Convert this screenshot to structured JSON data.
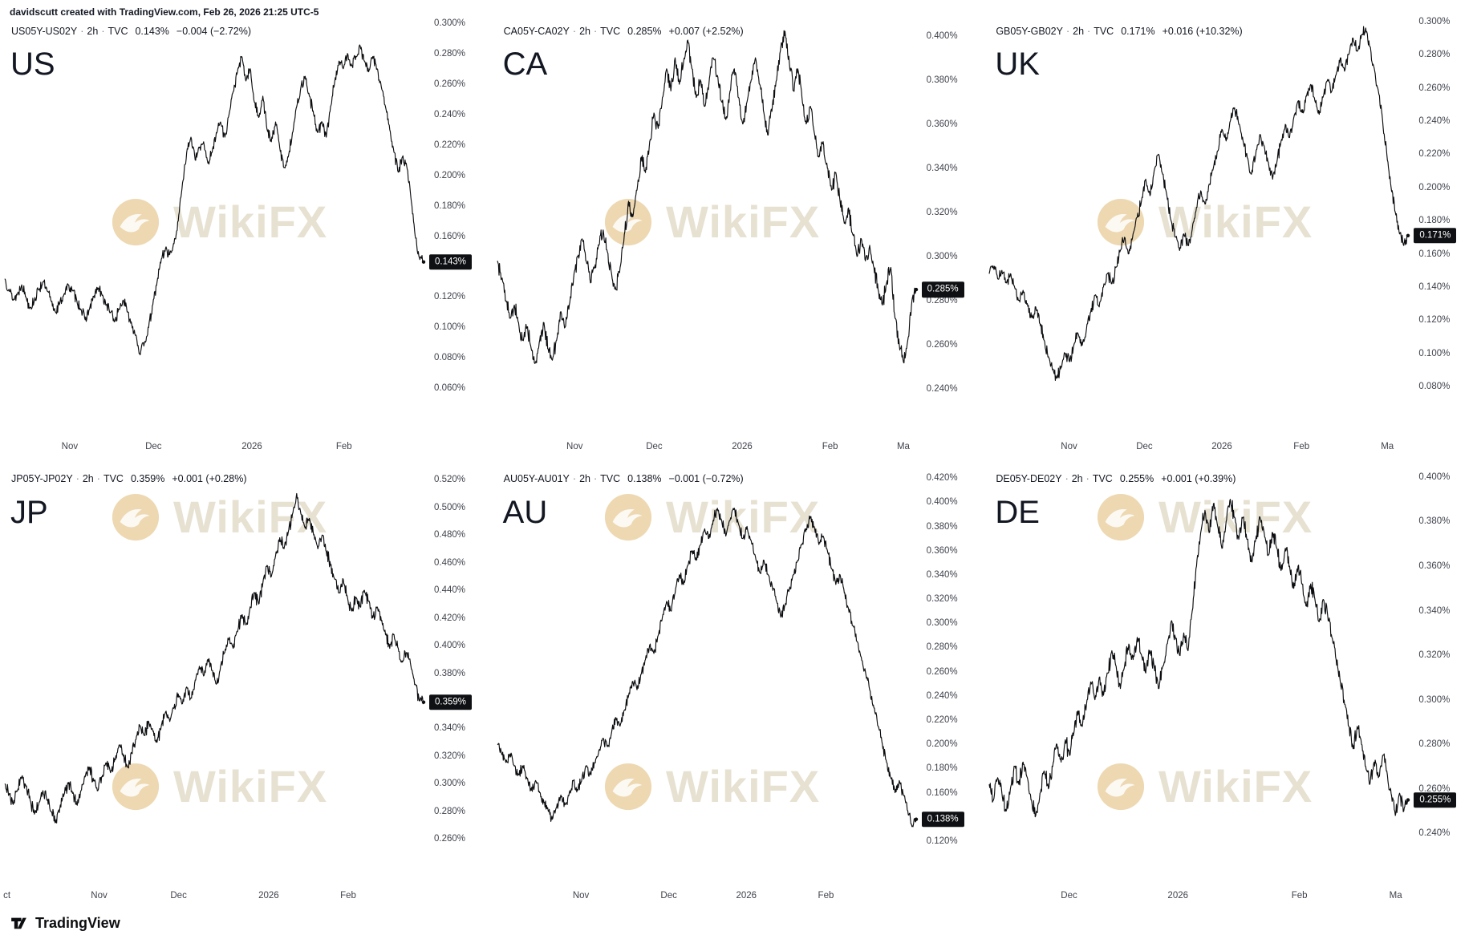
{
  "meta": {
    "sep": "·"
  },
  "credit": "davidscutt created with TradingView.com, Feb 26, 2026 21:25 UTC-5",
  "footer": {
    "brand": "TradingView"
  },
  "watermark": {
    "text": "WikiFX",
    "text_color": "#c9bd9a",
    "logo_color": "#d8ab55"
  },
  "chart_data": [
    {
      "type": "line",
      "title": "US",
      "symbol": "US05Y-US02Y",
      "interval": "2h",
      "source": "TVC",
      "price": "0.143%",
      "change": "−0.004",
      "change_pct": "(−2.72%)",
      "badge_value": 0.143,
      "ylim": [
        0.048,
        0.312
      ],
      "ytick_min": 0.06,
      "ytick_max": 0.3,
      "ytick_step": 0.02,
      "jitter": 0.004,
      "x_labels": [
        {
          "t": "Nov",
          "f": 0.155
        },
        {
          "t": "Dec",
          "f": 0.355
        },
        {
          "t": "2026",
          "f": 0.59
        },
        {
          "t": "Feb",
          "f": 0.81
        }
      ],
      "values": [
        0.132,
        0.125,
        0.118,
        0.122,
        0.128,
        0.12,
        0.113,
        0.118,
        0.125,
        0.13,
        0.124,
        0.117,
        0.11,
        0.116,
        0.122,
        0.128,
        0.124,
        0.118,
        0.112,
        0.105,
        0.112,
        0.12,
        0.126,
        0.121,
        0.115,
        0.11,
        0.104,
        0.112,
        0.118,
        0.11,
        0.102,
        0.095,
        0.082,
        0.09,
        0.1,
        0.115,
        0.13,
        0.145,
        0.152,
        0.148,
        0.155,
        0.17,
        0.195,
        0.215,
        0.225,
        0.21,
        0.218,
        0.222,
        0.208,
        0.215,
        0.228,
        0.235,
        0.225,
        0.24,
        0.255,
        0.268,
        0.278,
        0.262,
        0.27,
        0.248,
        0.238,
        0.252,
        0.23,
        0.222,
        0.235,
        0.218,
        0.205,
        0.212,
        0.228,
        0.245,
        0.258,
        0.265,
        0.252,
        0.24,
        0.228,
        0.235,
        0.225,
        0.245,
        0.262,
        0.275,
        0.27,
        0.28,
        0.272,
        0.278,
        0.285,
        0.275,
        0.268,
        0.278,
        0.27,
        0.258,
        0.245,
        0.23,
        0.215,
        0.202,
        0.212,
        0.206,
        0.185,
        0.16,
        0.146,
        0.143
      ]
    },
    {
      "type": "line",
      "title": "CA",
      "symbol": "CA05Y-CA02Y",
      "interval": "2h",
      "source": "TVC",
      "price": "0.285%",
      "change": "+0.007",
      "change_pct": "(+2.52%)",
      "badge_value": 0.285,
      "ylim": [
        0.232,
        0.414
      ],
      "ytick_min": 0.24,
      "ytick_max": 0.4,
      "ytick_step": 0.02,
      "jitter": 0.004,
      "x_labels": [
        {
          "t": "Nov",
          "f": 0.185
        },
        {
          "t": "Dec",
          "f": 0.375
        },
        {
          "t": "2026",
          "f": 0.585
        },
        {
          "t": "Feb",
          "f": 0.795
        },
        {
          "t": "Ma",
          "f": 0.97
        }
      ],
      "values": [
        0.298,
        0.29,
        0.28,
        0.272,
        0.278,
        0.27,
        0.262,
        0.268,
        0.258,
        0.252,
        0.262,
        0.27,
        0.258,
        0.253,
        0.262,
        0.275,
        0.268,
        0.278,
        0.29,
        0.3,
        0.308,
        0.298,
        0.288,
        0.295,
        0.305,
        0.312,
        0.302,
        0.292,
        0.285,
        0.295,
        0.31,
        0.325,
        0.318,
        0.33,
        0.345,
        0.338,
        0.352,
        0.365,
        0.358,
        0.372,
        0.385,
        0.375,
        0.39,
        0.378,
        0.388,
        0.398,
        0.385,
        0.372,
        0.38,
        0.368,
        0.378,
        0.39,
        0.382,
        0.37,
        0.362,
        0.375,
        0.385,
        0.372,
        0.36,
        0.37,
        0.38,
        0.39,
        0.378,
        0.365,
        0.355,
        0.368,
        0.38,
        0.395,
        0.402,
        0.388,
        0.375,
        0.385,
        0.372,
        0.36,
        0.368,
        0.355,
        0.345,
        0.352,
        0.34,
        0.33,
        0.338,
        0.325,
        0.315,
        0.322,
        0.31,
        0.3,
        0.308,
        0.298,
        0.305,
        0.295,
        0.285,
        0.278,
        0.288,
        0.295,
        0.272,
        0.26,
        0.252,
        0.262,
        0.28,
        0.285
      ]
    },
    {
      "type": "line",
      "title": "UK",
      "symbol": "GB05Y-GB02Y",
      "interval": "2h",
      "source": "TVC",
      "price": "0.171%",
      "change": "+0.016",
      "change_pct": "(+10.32%)",
      "badge_value": 0.171,
      "ylim": [
        0.068,
        0.31
      ],
      "ytick_min": 0.08,
      "ytick_max": 0.3,
      "ytick_step": 0.02,
      "jitter": 0.004,
      "x_labels": [
        {
          "t": "Nov",
          "f": 0.19
        },
        {
          "t": "Dec",
          "f": 0.37
        },
        {
          "t": "2026",
          "f": 0.555
        },
        {
          "t": "Feb",
          "f": 0.745
        },
        {
          "t": "Ma",
          "f": 0.95
        }
      ],
      "values": [
        0.148,
        0.152,
        0.145,
        0.15,
        0.143,
        0.148,
        0.14,
        0.132,
        0.138,
        0.13,
        0.122,
        0.128,
        0.118,
        0.108,
        0.098,
        0.09,
        0.085,
        0.092,
        0.1,
        0.095,
        0.105,
        0.112,
        0.105,
        0.115,
        0.125,
        0.135,
        0.128,
        0.14,
        0.148,
        0.142,
        0.152,
        0.162,
        0.17,
        0.16,
        0.172,
        0.182,
        0.192,
        0.205,
        0.195,
        0.21,
        0.22,
        0.208,
        0.195,
        0.18,
        0.17,
        0.162,
        0.172,
        0.165,
        0.175,
        0.188,
        0.198,
        0.19,
        0.202,
        0.212,
        0.222,
        0.235,
        0.228,
        0.24,
        0.248,
        0.238,
        0.228,
        0.218,
        0.208,
        0.22,
        0.232,
        0.225,
        0.215,
        0.205,
        0.215,
        0.228,
        0.238,
        0.23,
        0.242,
        0.252,
        0.245,
        0.255,
        0.262,
        0.252,
        0.244,
        0.255,
        0.265,
        0.258,
        0.268,
        0.278,
        0.27,
        0.28,
        0.29,
        0.282,
        0.292,
        0.296,
        0.285,
        0.272,
        0.258,
        0.24,
        0.22,
        0.2,
        0.185,
        0.172,
        0.165,
        0.171
      ]
    },
    {
      "type": "line",
      "title": "JP",
      "symbol": "JP05Y-JP02Y",
      "interval": "2h",
      "source": "TVC",
      "price": "0.359%",
      "change": "+0.001",
      "change_pct": "(+0.28%)",
      "badge_value": 0.359,
      "ylim": [
        0.248,
        0.53
      ],
      "ytick_min": 0.26,
      "ytick_max": 0.52,
      "ytick_step": 0.02,
      "jitter": 0.005,
      "x_labels": [
        {
          "t": "ct",
          "f": 0.005
        },
        {
          "t": "Nov",
          "f": 0.225
        },
        {
          "t": "Dec",
          "f": 0.415
        },
        {
          "t": "2026",
          "f": 0.63
        },
        {
          "t": "Feb",
          "f": 0.82
        }
      ],
      "values": [
        0.3,
        0.292,
        0.285,
        0.295,
        0.305,
        0.298,
        0.288,
        0.278,
        0.285,
        0.295,
        0.288,
        0.28,
        0.272,
        0.282,
        0.292,
        0.3,
        0.293,
        0.285,
        0.295,
        0.305,
        0.312,
        0.302,
        0.295,
        0.305,
        0.315,
        0.308,
        0.318,
        0.328,
        0.32,
        0.312,
        0.322,
        0.332,
        0.342,
        0.335,
        0.345,
        0.338,
        0.33,
        0.342,
        0.352,
        0.345,
        0.355,
        0.365,
        0.358,
        0.37,
        0.362,
        0.375,
        0.385,
        0.378,
        0.39,
        0.382,
        0.372,
        0.385,
        0.395,
        0.405,
        0.398,
        0.41,
        0.422,
        0.415,
        0.428,
        0.438,
        0.43,
        0.445,
        0.458,
        0.45,
        0.465,
        0.478,
        0.47,
        0.482,
        0.495,
        0.51,
        0.495,
        0.485,
        0.492,
        0.48,
        0.47,
        0.48,
        0.468,
        0.458,
        0.448,
        0.438,
        0.448,
        0.435,
        0.425,
        0.435,
        0.428,
        0.44,
        0.432,
        0.42,
        0.428,
        0.418,
        0.408,
        0.398,
        0.408,
        0.398,
        0.388,
        0.395,
        0.385,
        0.372,
        0.36,
        0.359
      ]
    },
    {
      "type": "line",
      "title": "AU",
      "symbol": "AU05Y-AU01Y",
      "interval": "2h",
      "source": "TVC",
      "price": "0.138%",
      "change": "−0.001",
      "change_pct": "(−0.72%)",
      "badge_value": 0.138,
      "ylim": [
        0.108,
        0.43
      ],
      "ytick_min": 0.12,
      "ytick_max": 0.42,
      "ytick_step": 0.02,
      "jitter": 0.005,
      "x_labels": [
        {
          "t": "Nov",
          "f": 0.2
        },
        {
          "t": "Dec",
          "f": 0.41
        },
        {
          "t": "2026",
          "f": 0.595
        },
        {
          "t": "Feb",
          "f": 0.785
        }
      ],
      "values": [
        0.2,
        0.192,
        0.185,
        0.192,
        0.182,
        0.175,
        0.182,
        0.172,
        0.162,
        0.17,
        0.16,
        0.152,
        0.145,
        0.138,
        0.148,
        0.158,
        0.15,
        0.16,
        0.17,
        0.162,
        0.172,
        0.182,
        0.175,
        0.185,
        0.195,
        0.205,
        0.198,
        0.21,
        0.222,
        0.215,
        0.228,
        0.24,
        0.252,
        0.245,
        0.258,
        0.27,
        0.282,
        0.275,
        0.29,
        0.305,
        0.318,
        0.31,
        0.325,
        0.34,
        0.332,
        0.348,
        0.36,
        0.352,
        0.365,
        0.378,
        0.37,
        0.385,
        0.395,
        0.385,
        0.372,
        0.385,
        0.395,
        0.382,
        0.37,
        0.38,
        0.368,
        0.355,
        0.342,
        0.352,
        0.34,
        0.33,
        0.318,
        0.305,
        0.315,
        0.328,
        0.34,
        0.352,
        0.365,
        0.378,
        0.388,
        0.378,
        0.365,
        0.372,
        0.36,
        0.345,
        0.332,
        0.34,
        0.325,
        0.312,
        0.298,
        0.285,
        0.272,
        0.26,
        0.245,
        0.23,
        0.215,
        0.2,
        0.185,
        0.172,
        0.16,
        0.17,
        0.158,
        0.145,
        0.132,
        0.138
      ]
    },
    {
      "type": "line",
      "title": "DE",
      "symbol": "DE05Y-DE02Y",
      "interval": "2h",
      "source": "TVC",
      "price": "0.255%",
      "change": "+0.001",
      "change_pct": "(+0.39%)",
      "badge_value": 0.255,
      "ylim": [
        0.23,
        0.405
      ],
      "ytick_min": 0.24,
      "ytick_max": 0.4,
      "ytick_step": 0.02,
      "jitter": 0.004,
      "x_labels": [
        {
          "t": "Dec",
          "f": 0.19
        },
        {
          "t": "2026",
          "f": 0.45
        },
        {
          "t": "Feb",
          "f": 0.74
        },
        {
          "t": "Ma",
          "f": 0.97
        }
      ],
      "values": [
        0.262,
        0.255,
        0.265,
        0.258,
        0.25,
        0.26,
        0.27,
        0.262,
        0.272,
        0.265,
        0.255,
        0.248,
        0.258,
        0.268,
        0.26,
        0.27,
        0.28,
        0.272,
        0.282,
        0.275,
        0.285,
        0.295,
        0.288,
        0.298,
        0.308,
        0.3,
        0.31,
        0.302,
        0.312,
        0.322,
        0.315,
        0.305,
        0.315,
        0.325,
        0.318,
        0.328,
        0.32,
        0.312,
        0.322,
        0.315,
        0.305,
        0.315,
        0.325,
        0.335,
        0.328,
        0.32,
        0.33,
        0.322,
        0.34,
        0.36,
        0.375,
        0.385,
        0.375,
        0.388,
        0.378,
        0.368,
        0.38,
        0.39,
        0.382,
        0.372,
        0.382,
        0.372,
        0.362,
        0.372,
        0.382,
        0.375,
        0.365,
        0.375,
        0.368,
        0.358,
        0.368,
        0.36,
        0.35,
        0.36,
        0.352,
        0.342,
        0.352,
        0.345,
        0.335,
        0.345,
        0.338,
        0.328,
        0.318,
        0.308,
        0.298,
        0.288,
        0.278,
        0.288,
        0.28,
        0.27,
        0.262,
        0.272,
        0.265,
        0.275,
        0.268,
        0.258,
        0.248,
        0.258,
        0.25,
        0.255
      ]
    }
  ]
}
